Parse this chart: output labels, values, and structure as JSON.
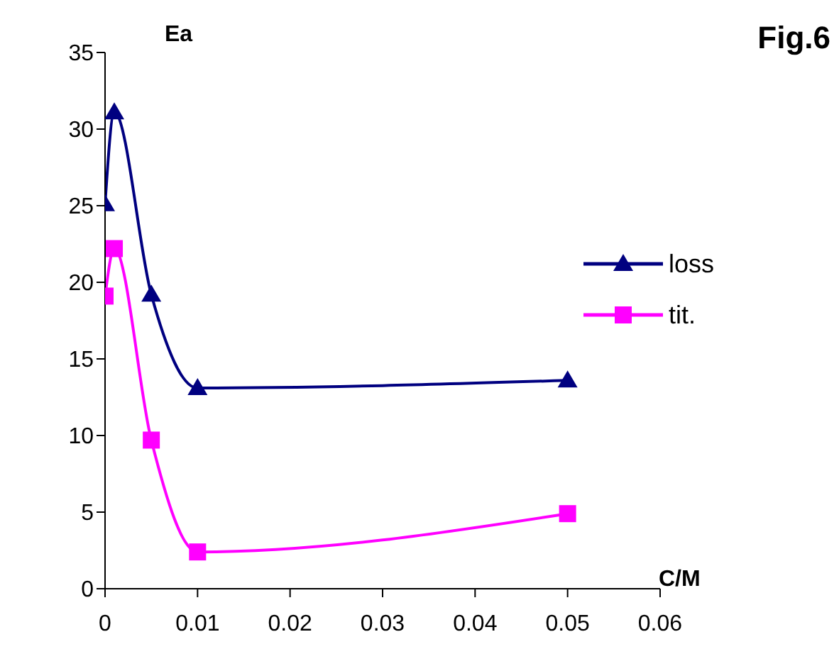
{
  "chart_data": {
    "type": "line",
    "title": "Fig.6",
    "xlabel": "C/M",
    "ylabel": "Ea",
    "x": [
      0,
      0.001,
      0.005,
      0.01,
      0.05
    ],
    "series": [
      {
        "name": "loss",
        "color": "#000080",
        "marker": "triangle",
        "values": [
          25.1,
          31.1,
          19.2,
          13.1,
          13.6
        ]
      },
      {
        "name": "tit.",
        "color": "#ff00ff",
        "marker": "square",
        "values": [
          19.1,
          22.2,
          9.7,
          2.4,
          4.9
        ]
      }
    ],
    "xlim": [
      0,
      0.06
    ],
    "xticks": [
      0,
      0.01,
      0.02,
      0.03,
      0.04,
      0.05,
      0.06
    ],
    "ylim": [
      0,
      35
    ],
    "yticks": [
      0,
      5,
      10,
      15,
      20,
      25,
      30,
      35
    ],
    "grid": false,
    "legend": "right",
    "line_style": "solid"
  }
}
